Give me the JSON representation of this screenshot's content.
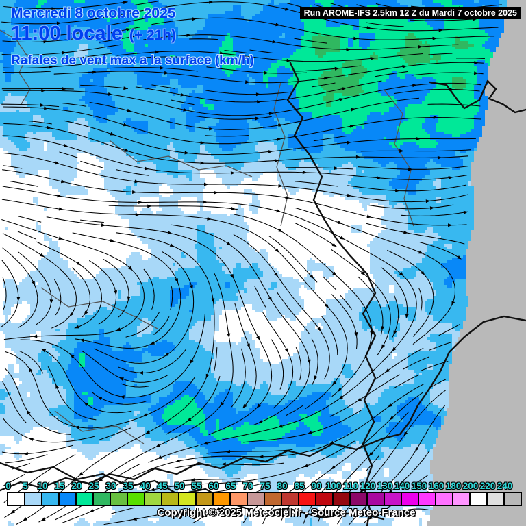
{
  "header": {
    "date_line": "Mercredi 8 octobre 2025",
    "time_line": "11:00 locale",
    "offset_label": "(+ 21h)",
    "variable_label": "Rafales de vent max a la surface (km/h)",
    "run_info": "Run AROME-IFS 2.5km 12 Z du Mardi 7 octobre 2025"
  },
  "footer": {
    "copyright": "Copyright © 2025 Meteociel.fr - Source Meteo-France"
  },
  "colors": {
    "title_text": "#0040f0",
    "title_halo_small": "#b8e0ff",
    "title_halo_large": "#7fb2ff",
    "runbar_bg": "#000000",
    "runbar_text": "#ffffff",
    "scale_label_cyan": "#2fd8d8",
    "nodata_gray": "#b9b9b9",
    "streamline_black": "#000000",
    "border_dark": "#111111",
    "admin_gray": "#555555"
  },
  "scale": {
    "unit": "km/h",
    "values": [
      0,
      5,
      10,
      15,
      20,
      25,
      30,
      35,
      40,
      45,
      50,
      55,
      60,
      65,
      70,
      75,
      80,
      85,
      90,
      100,
      110,
      120,
      130,
      140,
      150,
      160,
      180,
      200,
      220,
      240
    ],
    "colors": [
      "#ffffff",
      "#a8d8f8",
      "#38b8f0",
      "#0888f8",
      "#00e898",
      "#30b860",
      "#68c040",
      "#58e000",
      "#a0d840",
      "#b8b818",
      "#d4e620",
      "#c49818",
      "#ff9800",
      "#ff9868",
      "#c89898",
      "#c06830",
      "#c03830",
      "#f81414",
      "#c00810",
      "#940810",
      "#8c0868",
      "#a808a0",
      "#c814c8",
      "#ec00ec",
      "#ff38ff",
      "#ff70ff",
      "#ff94ff",
      "#ffffff",
      "#e0e0e0",
      "#b8b8b8"
    ]
  }
}
